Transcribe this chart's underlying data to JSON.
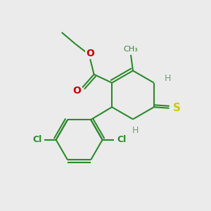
{
  "bg_color": "#ebebeb",
  "bond_color": "#2d8a2d",
  "bond_width": 1.5,
  "atom_colors": {
    "C": "#2d8a2d",
    "N": "#1a1acc",
    "O": "#cc0000",
    "S": "#cccc00",
    "Cl": "#2d8a2d",
    "H": "#7a9a7a"
  },
  "fig_size": [
    3.0,
    3.0
  ],
  "dpi": 100
}
